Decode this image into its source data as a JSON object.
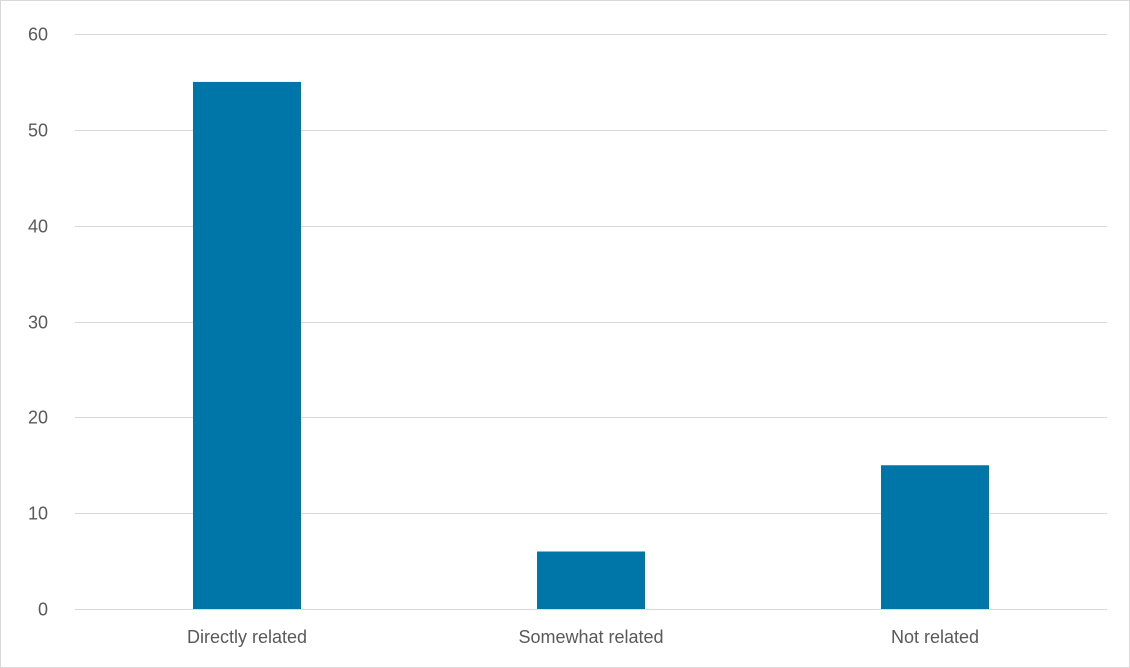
{
  "chart_data": {
    "type": "bar",
    "title": "",
    "xlabel": "",
    "ylabel": "",
    "categories": [
      "Directly related",
      "Somewhat related",
      "Not related"
    ],
    "values": [
      55,
      6,
      15
    ],
    "ylim": [
      0,
      60
    ],
    "yticks": [
      0,
      10,
      20,
      30,
      40,
      50,
      60
    ],
    "grid": true,
    "legend": "none",
    "colors": {
      "bar": "#0076a8",
      "grid": "#d9d9d9",
      "tick_text": "#595959"
    }
  }
}
